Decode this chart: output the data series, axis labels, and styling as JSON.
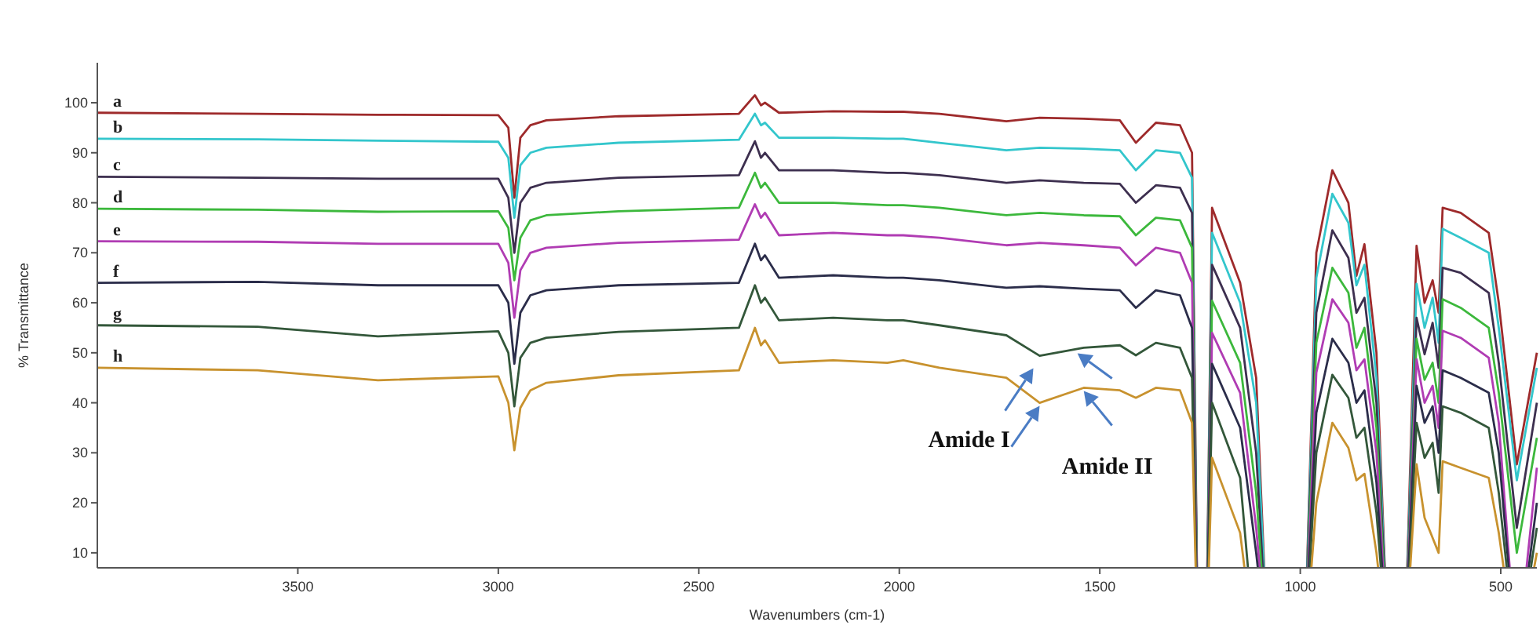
{
  "chart_data": {
    "type": "line",
    "xlabel": "Wavenumbers (cm-1)",
    "ylabel": "% Transmittance",
    "x": [
      4000,
      3600,
      3300,
      3000,
      2975,
      2960,
      2945,
      2920,
      2880,
      2700,
      2400,
      2360,
      2345,
      2335,
      2300,
      2165,
      2030,
      1990,
      1900,
      1733,
      1650,
      1540,
      1450,
      1410,
      1360,
      1300,
      1270,
      1255,
      1235,
      1220,
      1150,
      1110,
      1080,
      1000,
      990,
      960,
      920,
      880,
      860,
      840,
      810,
      780,
      740,
      710,
      690,
      670,
      655,
      645,
      600,
      530,
      505,
      460,
      410
    ],
    "xlim": [
      4000,
      410
    ],
    "xticks": [
      3500,
      3000,
      2500,
      2000,
      1500,
      1000,
      500
    ],
    "ylim": [
      7,
      108
    ],
    "yticks": [
      10,
      20,
      30,
      40,
      50,
      60,
      70,
      80,
      90,
      100
    ],
    "grid": false,
    "marker": "none",
    "line_style": "solid",
    "series": [
      {
        "name": "a",
        "color": "#9e2a2b",
        "values": [
          98,
          97.8,
          97.6,
          97.5,
          95,
          81,
          93,
          95.5,
          96.5,
          97.3,
          97.8,
          101.5,
          99.5,
          100,
          98,
          98.3,
          98.2,
          98.2,
          97.8,
          96.3,
          97,
          96.8,
          96.5,
          92,
          96,
          95.5,
          90,
          null,
          null,
          79,
          64,
          45,
          null,
          null,
          null,
          70,
          86.5,
          80,
          65.4,
          71.7,
          50,
          null,
          null,
          71.4,
          60,
          64.5,
          58,
          79,
          78,
          74,
          60,
          27.7,
          50
        ]
      },
      {
        "name": "b",
        "color": "#33c6cc",
        "values": [
          92.8,
          92.7,
          92.4,
          92.2,
          89,
          77,
          87.5,
          90,
          91,
          92,
          92.6,
          97.8,
          95.5,
          96,
          93,
          93,
          92.8,
          92.8,
          92,
          90.5,
          91,
          90.8,
          90.5,
          86.5,
          90.5,
          90,
          85,
          null,
          null,
          74,
          60,
          40,
          null,
          null,
          null,
          65,
          81.8,
          76,
          63.5,
          67.6,
          45,
          null,
          null,
          63.8,
          55,
          61,
          52,
          74.8,
          73,
          70,
          55,
          24.5,
          47
        ]
      },
      {
        "name": "c",
        "color": "#3d2f4f",
        "values": [
          85.2,
          85,
          84.8,
          84.8,
          81,
          70,
          80,
          83,
          84,
          85,
          85.5,
          92.3,
          89,
          90,
          86.5,
          86.5,
          86,
          86,
          85.5,
          84,
          84.5,
          84,
          83.8,
          80,
          83.5,
          83,
          78,
          null,
          null,
          67.6,
          55,
          30,
          null,
          null,
          null,
          58,
          74.5,
          69,
          58,
          61,
          40,
          null,
          null,
          57,
          49.7,
          56,
          47,
          67,
          66,
          62,
          48,
          15,
          40
        ]
      },
      {
        "name": "d",
        "color": "#3cb83c",
        "values": [
          78.8,
          78.6,
          78.2,
          78.3,
          75,
          64.5,
          73,
          76.5,
          77.5,
          78.3,
          79,
          86,
          83,
          84,
          80,
          80,
          79.5,
          79.5,
          79,
          77.5,
          78,
          77.5,
          77.3,
          73.5,
          77,
          76.5,
          71,
          null,
          null,
          60.4,
          48,
          22,
          null,
          null,
          null,
          52,
          67,
          62,
          51,
          55,
          35,
          null,
          null,
          52.8,
          44.6,
          48,
          40,
          60.7,
          59,
          55,
          42,
          10,
          33
        ]
      },
      {
        "name": "e",
        "color": "#b03cb3",
        "values": [
          72.3,
          72.2,
          71.8,
          71.8,
          68,
          57,
          66.5,
          70,
          71,
          72,
          72.6,
          79.7,
          77,
          78,
          73.5,
          74,
          73.5,
          73.5,
          73,
          71.5,
          72,
          71.5,
          71,
          67.5,
          71,
          70,
          64,
          null,
          null,
          54,
          42,
          15,
          null,
          null,
          null,
          46,
          60.7,
          56,
          46.5,
          48.7,
          30,
          null,
          null,
          48.7,
          40,
          43.4,
          35,
          54.4,
          53,
          49,
          36,
          null,
          27
        ]
      },
      {
        "name": "f",
        "color": "#2b2d4a",
        "values": [
          64,
          64.2,
          63.5,
          63.5,
          60,
          47.8,
          58,
          61.5,
          62.5,
          63.5,
          64,
          71.8,
          68.5,
          69.5,
          65,
          65.5,
          65,
          65,
          64.5,
          63,
          63.3,
          62.8,
          62.5,
          59,
          62.5,
          61.5,
          55,
          null,
          null,
          47.8,
          35,
          10,
          null,
          null,
          null,
          38,
          52.8,
          48,
          40,
          42.5,
          24,
          null,
          null,
          43.4,
          36,
          39.3,
          30,
          46.5,
          45,
          42,
          30,
          null,
          20
        ]
      },
      {
        "name": "g",
        "color": "#33573a",
        "values": [
          55.5,
          55.2,
          53.3,
          54.3,
          50,
          39.3,
          49,
          52,
          53,
          54.2,
          55,
          63.5,
          60,
          61,
          56.5,
          57,
          56.5,
          56.5,
          55.5,
          53.5,
          49.4,
          51,
          51.5,
          49.5,
          52,
          51,
          45,
          null,
          null,
          40,
          25,
          null,
          null,
          null,
          null,
          30,
          45.6,
          41,
          33,
          35,
          18,
          null,
          null,
          36,
          29,
          32,
          22,
          39.3,
          38,
          35,
          22,
          null,
          15
        ]
      },
      {
        "name": "h",
        "color": "#c8922e",
        "values": [
          47,
          46.5,
          44.5,
          45.3,
          40,
          30.5,
          39,
          42.5,
          44,
          45.5,
          46.5,
          55,
          51.5,
          52.5,
          48,
          48.5,
          48,
          48.5,
          47,
          45,
          40,
          43,
          42.5,
          41,
          43,
          42.5,
          36,
          null,
          null,
          29,
          14,
          null,
          null,
          null,
          null,
          20,
          36,
          31,
          24.5,
          25.8,
          10,
          null,
          null,
          27.7,
          17,
          13,
          10,
          28.3,
          27,
          25,
          14,
          null,
          10
        ]
      }
    ],
    "annotations": [
      {
        "text": "Amide I",
        "x": 1650,
        "y": 40
      },
      {
        "text": "Amide II",
        "x": 1540,
        "y": 43
      }
    ]
  }
}
